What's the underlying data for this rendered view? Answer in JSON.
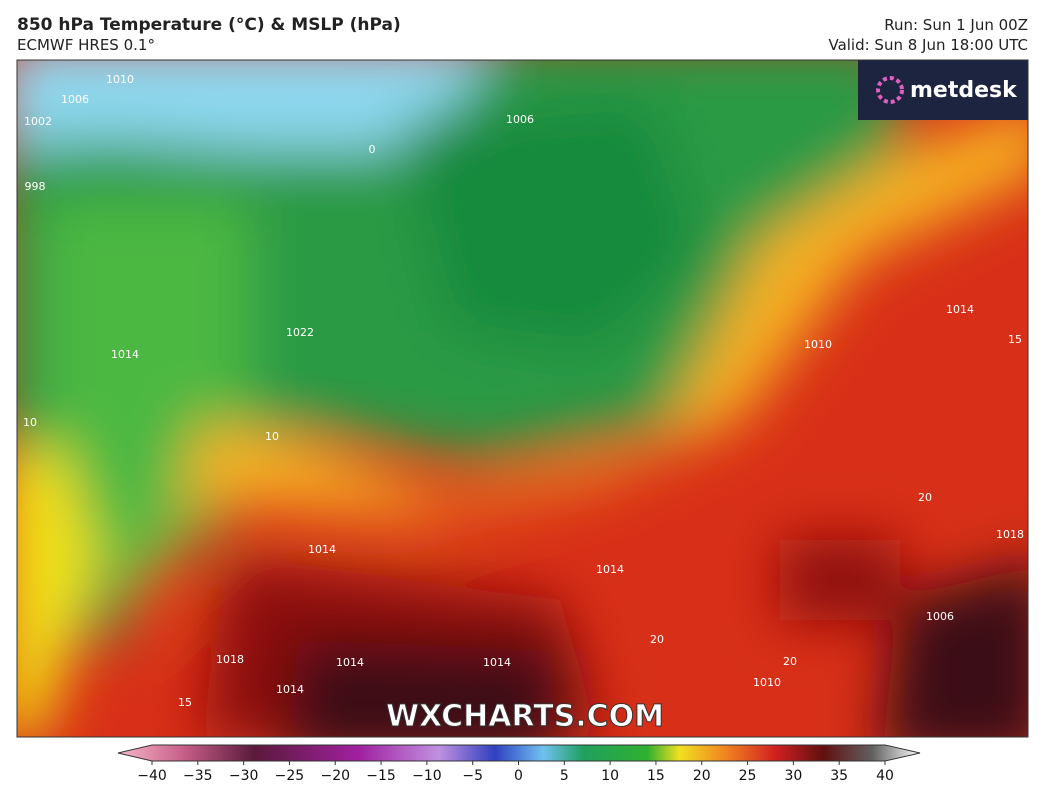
{
  "header": {
    "title": "850 hPa Temperature (°C) & MSLP (hPa)",
    "subtitle": "ECMWF HRES 0.1°",
    "run": "Run: Sun 1 Jun 00Z",
    "valid": "Valid: Sun 8 Jun 18:00 UTC"
  },
  "logo": "metdesk",
  "watermark": "WXCHARTS.COM",
  "map": {
    "contour_labels": [
      1010,
      1006,
      1002,
      998,
      0,
      1006,
      1022,
      1014,
      10,
      10,
      1014,
      1014,
      1014,
      1014,
      1018,
      15,
      1014,
      20,
      20,
      1010,
      1006,
      20,
      1014,
      15,
      1010,
      1018
    ]
  },
  "colorbar": {
    "ticks": [
      {
        "value": -40,
        "label": "−40"
      },
      {
        "value": -35,
        "label": "−35"
      },
      {
        "value": -30,
        "label": "−30"
      },
      {
        "value": -25,
        "label": "−25"
      },
      {
        "value": -20,
        "label": "−20"
      },
      {
        "value": -15,
        "label": "−15"
      },
      {
        "value": -10,
        "label": "−10"
      },
      {
        "value": -5,
        "label": "−5"
      },
      0,
      5,
      10,
      15,
      20,
      25,
      30,
      35,
      40
    ]
  }
}
